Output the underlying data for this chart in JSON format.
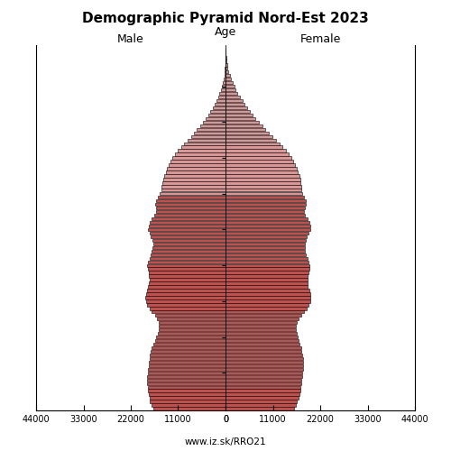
{
  "title": "Demographic Pyramid Nord-Est 2023",
  "subtitle_left": "Male",
  "subtitle_right": "Female",
  "age_label": "Age",
  "footer": "www.iz.sk/RRO21",
  "xlim": 44000,
  "bar_color_young": "#c0504d",
  "bar_color_old": "#d99694",
  "bar_edge_color": "#000000",
  "bar_linewidth": 0.4,
  "ages": [
    0,
    1,
    2,
    3,
    4,
    5,
    6,
    7,
    8,
    9,
    10,
    11,
    12,
    13,
    14,
    15,
    16,
    17,
    18,
    19,
    20,
    21,
    22,
    23,
    24,
    25,
    26,
    27,
    28,
    29,
    30,
    31,
    32,
    33,
    34,
    35,
    36,
    37,
    38,
    39,
    40,
    41,
    42,
    43,
    44,
    45,
    46,
    47,
    48,
    49,
    50,
    51,
    52,
    53,
    54,
    55,
    56,
    57,
    58,
    59,
    60,
    61,
    62,
    63,
    64,
    65,
    66,
    67,
    68,
    69,
    70,
    71,
    72,
    73,
    74,
    75,
    76,
    77,
    78,
    79,
    80,
    81,
    82,
    83,
    84,
    85,
    86,
    87,
    88,
    89,
    90,
    91,
    92,
    93,
    94,
    95,
    96,
    97,
    98,
    99,
    100
  ],
  "male": [
    16800,
    17200,
    17500,
    17700,
    17900,
    18000,
    18100,
    18200,
    18300,
    18200,
    18100,
    18000,
    17900,
    17800,
    17700,
    17600,
    17400,
    17100,
    16700,
    16400,
    16100,
    15800,
    15600,
    15500,
    15600,
    15900,
    16400,
    17100,
    17700,
    18200,
    18500,
    18600,
    18500,
    18300,
    18000,
    17800,
    17700,
    17800,
    17900,
    18100,
    18300,
    18000,
    17700,
    17400,
    17100,
    16900,
    16800,
    17000,
    17300,
    17700,
    18000,
    17900,
    17600,
    17100,
    16500,
    16100,
    16200,
    16300,
    16100,
    15800,
    15300,
    14900,
    14800,
    14700,
    14500,
    14200,
    13900,
    13600,
    13200,
    12800,
    12300,
    11700,
    11000,
    10300,
    9600,
    8800,
    8000,
    7300,
    6600,
    5900,
    5200,
    4600,
    4000,
    3500,
    3000,
    2500,
    2100,
    1700,
    1400,
    1100,
    800,
    600,
    450,
    310,
    210,
    140,
    85,
    50,
    28,
    14,
    6
  ],
  "female": [
    15900,
    16300,
    16600,
    16900,
    17100,
    17300,
    17400,
    17500,
    17700,
    17800,
    17900,
    18000,
    18100,
    18100,
    18000,
    17900,
    17700,
    17500,
    17200,
    17000,
    16700,
    16500,
    16400,
    16400,
    16600,
    17000,
    17500,
    18200,
    18800,
    19300,
    19600,
    19700,
    19600,
    19400,
    19100,
    19000,
    19000,
    19100,
    19200,
    19400,
    19500,
    19300,
    19000,
    18700,
    18500,
    18400,
    18400,
    18600,
    18900,
    19300,
    19600,
    19600,
    19400,
    19000,
    18500,
    18300,
    18500,
    18700,
    18600,
    18300,
    17900,
    17600,
    17500,
    17400,
    17300,
    17100,
    16800,
    16500,
    16200,
    15800,
    15300,
    14700,
    14000,
    13300,
    12500,
    11700,
    10900,
    10100,
    9300,
    8500,
    7700,
    7000,
    6300,
    5700,
    5100,
    4500,
    3900,
    3300,
    2800,
    2400,
    2000,
    1600,
    1250,
    950,
    710,
    510,
    340,
    210,
    120,
    65,
    28
  ],
  "color_threshold": 60,
  "ytick_positions": [
    10,
    20,
    30,
    40,
    50,
    60,
    70,
    80,
    90
  ],
  "background_color": "#ffffff",
  "figsize": [
    5.0,
    5.0
  ],
  "dpi": 100
}
